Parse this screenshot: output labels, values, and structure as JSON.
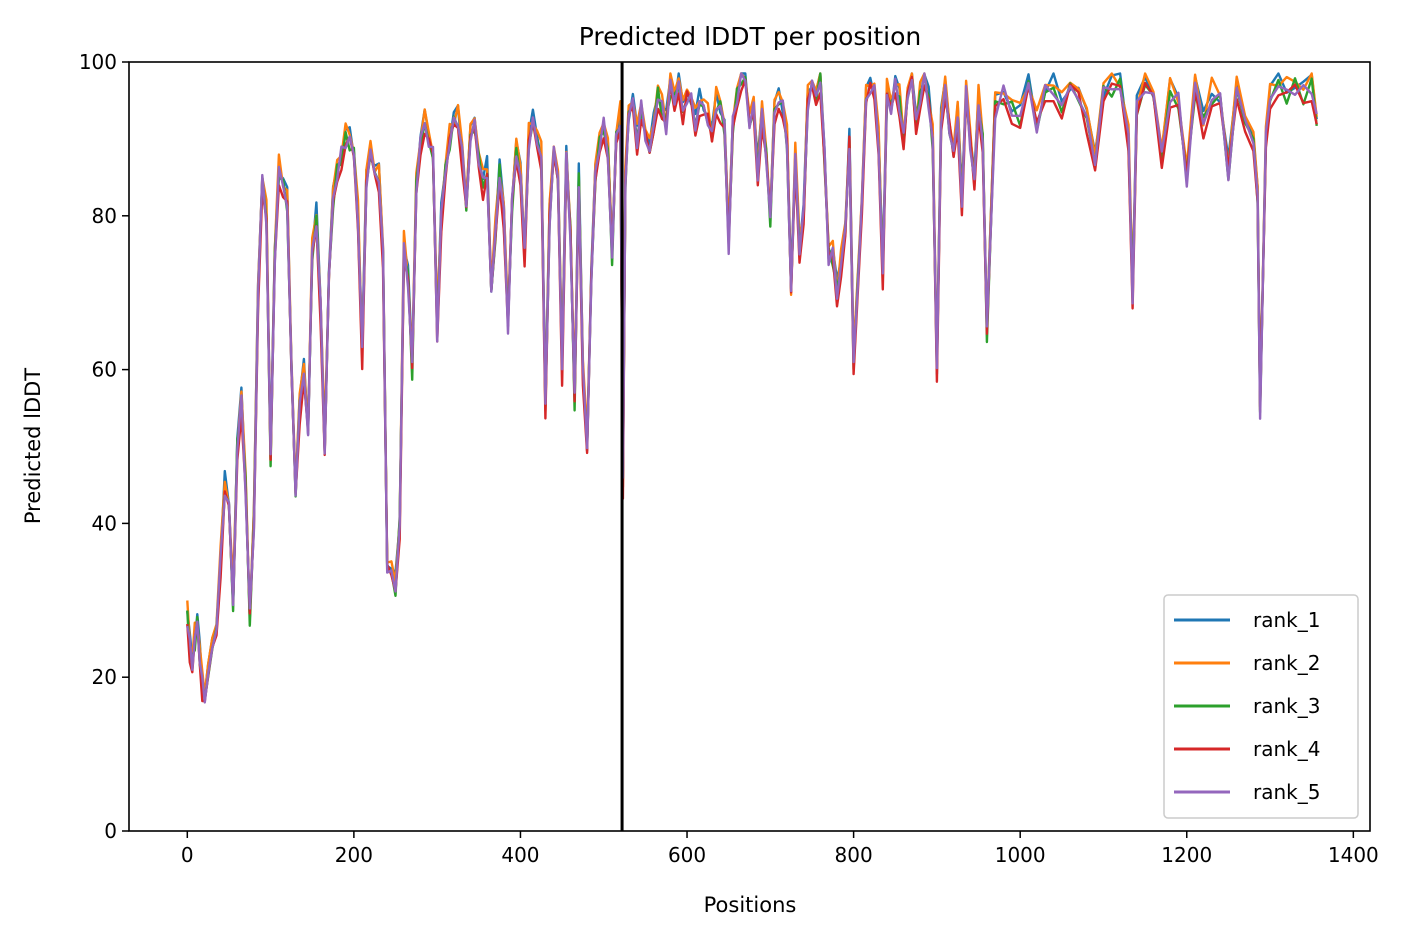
{
  "chart_data": {
    "type": "line",
    "title": "Predicted lDDT per position",
    "xlabel": "Positions",
    "ylabel": "Predicted lDDT",
    "xlim": [
      -70,
      1420
    ],
    "ylim": [
      0,
      100
    ],
    "xticks": [
      0,
      200,
      400,
      600,
      800,
      1000,
      1200,
      1400
    ],
    "yticks": [
      0,
      20,
      40,
      60,
      80,
      100
    ],
    "grid": false,
    "legend_position": "lower right",
    "vline": {
      "x": 522,
      "color": "#000000"
    },
    "series": [
      {
        "name": "rank_1",
        "color": "#1f77b4"
      },
      {
        "name": "rank_2",
        "color": "#ff7f0e"
      },
      {
        "name": "rank_3",
        "color": "#2ca02c"
      },
      {
        "name": "rank_4",
        "color": "#d62728"
      },
      {
        "name": "rank_5",
        "color": "#9467bd"
      }
    ],
    "profile": {
      "x": [
        0,
        3,
        6,
        9,
        12,
        15,
        18,
        21,
        25,
        30,
        35,
        40,
        45,
        50,
        55,
        60,
        65,
        70,
        75,
        80,
        85,
        90,
        95,
        100,
        105,
        110,
        115,
        120,
        125,
        130,
        135,
        140,
        145,
        150,
        155,
        160,
        165,
        170,
        175,
        180,
        185,
        190,
        195,
        200,
        205,
        210,
        215,
        220,
        225,
        230,
        235,
        240,
        245,
        250,
        255,
        260,
        265,
        270,
        275,
        280,
        285,
        290,
        295,
        300,
        305,
        310,
        315,
        320,
        325,
        330,
        335,
        340,
        345,
        350,
        355,
        360,
        365,
        370,
        375,
        380,
        385,
        390,
        395,
        400,
        405,
        410,
        415,
        420,
        425,
        430,
        435,
        440,
        445,
        450,
        455,
        460,
        465,
        470,
        475,
        480,
        485,
        490,
        495,
        500,
        505,
        510,
        515,
        520,
        523,
        526,
        530,
        535,
        540,
        545,
        550,
        555,
        560,
        565,
        570,
        575,
        580,
        585,
        590,
        595,
        600,
        605,
        610,
        615,
        620,
        625,
        630,
        635,
        640,
        645,
        650,
        655,
        660,
        665,
        670,
        675,
        680,
        685,
        690,
        695,
        700,
        705,
        710,
        715,
        720,
        725,
        730,
        735,
        740,
        745,
        750,
        755,
        760,
        765,
        770,
        775,
        780,
        785,
        790,
        795,
        800,
        805,
        810,
        815,
        820,
        825,
        830,
        835,
        840,
        845,
        850,
        855,
        860,
        865,
        870,
        875,
        880,
        885,
        890,
        895,
        900,
        905,
        910,
        915,
        920,
        925,
        930,
        935,
        940,
        945,
        950,
        955,
        960,
        970,
        980,
        990,
        1000,
        1010,
        1020,
        1030,
        1040,
        1050,
        1060,
        1070,
        1080,
        1090,
        1100,
        1110,
        1120,
        1130,
        1135,
        1140,
        1150,
        1160,
        1170,
        1180,
        1190,
        1200,
        1210,
        1220,
        1230,
        1240,
        1250,
        1260,
        1270,
        1280,
        1285,
        1288,
        1295,
        1300,
        1310,
        1320,
        1330,
        1340,
        1350,
        1356
      ],
      "y": [
        28,
        24,
        22,
        25,
        27,
        23,
        19,
        18,
        20,
        24,
        27,
        35,
        45,
        42,
        30,
        50,
        56,
        45,
        28,
        40,
        70,
        85,
        80,
        48,
        75,
        86,
        84,
        82,
        60,
        45,
        55,
        60,
        52,
        75,
        80,
        68,
        50,
        72,
        82,
        86,
        88,
        90,
        90,
        88,
        80,
        62,
        85,
        88,
        86,
        85,
        75,
        35,
        33,
        32,
        40,
        76,
        72,
        60,
        84,
        90,
        92,
        90,
        88,
        65,
        80,
        86,
        90,
        92,
        93,
        88,
        82,
        90,
        92,
        88,
        84,
        86,
        70,
        78,
        86,
        80,
        66,
        82,
        88,
        86,
        75,
        90,
        92,
        90,
        88,
        55,
        80,
        88,
        86,
        60,
        88,
        78,
        56,
        85,
        60,
        50,
        72,
        85,
        90,
        92,
        88,
        75,
        90,
        93,
        45,
        85,
        93,
        95,
        90,
        94,
        91,
        88,
        92,
        96,
        94,
        92,
        97,
        95,
        98,
        93,
        96,
        95,
        92,
        95,
        94,
        93,
        90,
        95,
        94,
        92,
        76,
        92,
        96,
        98,
        98,
        92,
        94,
        86,
        93,
        88,
        80,
        93,
        96,
        94,
        90,
        70,
        88,
        76,
        80,
        95,
        97,
        96,
        98,
        88,
        75,
        75,
        70,
        74,
        78,
        90,
        60,
        72,
        82,
        95,
        97,
        96,
        90,
        72,
        96,
        94,
        97,
        95,
        90,
        96,
        98,
        92,
        96,
        98,
        95,
        90,
        60,
        93,
        96,
        92,
        88,
        93,
        82,
        96,
        90,
        84,
        95,
        90,
        65,
        94,
        96,
        94,
        93,
        97,
        92,
        96,
        97,
        94,
        97,
        96,
        92,
        88,
        96,
        97,
        97,
        90,
        70,
        94,
        97,
        96,
        88,
        96,
        95,
        85,
        97,
        92,
        96,
        95,
        86,
        96,
        93,
        90,
        82,
        55,
        90,
        96,
        97,
        96,
        97,
        96,
        97,
        93
      ]
    }
  }
}
